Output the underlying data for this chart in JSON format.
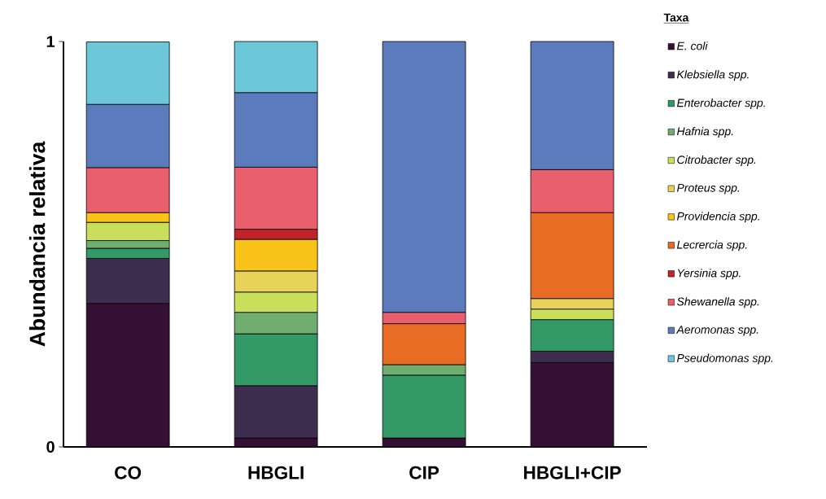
{
  "chart_data": {
    "type": "bar",
    "stacked": true,
    "ylabel": "Abundancia relativa",
    "legend_title": "Taxa",
    "legend": "right",
    "categories": [
      "CO",
      "HBGLI",
      "CIP",
      "HBGLI+CIP"
    ],
    "ylim": [
      0,
      1
    ],
    "yticks": [
      0,
      1
    ],
    "series": [
      {
        "name": "*E. coli*",
        "color": "#351035",
        "values": [
          0.354,
          0.022,
          0.022,
          0.208
        ]
      },
      {
        "name": "*Klebsiella spp.*",
        "color": "#3f2d4f",
        "values": [
          0.111,
          0.129,
          null,
          0.028
        ]
      },
      {
        "name": "*Enterobacter spp.*",
        "color": "#339966",
        "values": [
          0.025,
          0.128,
          0.155,
          0.078
        ]
      },
      {
        "name": "*Hafnia spp.*",
        "color": "#70ad70",
        "values": [
          0.019,
          0.053,
          0.026,
          null
        ]
      },
      {
        "name": "*Citrobacter spp.*",
        "color": "#c9df5b",
        "values": [
          0.045,
          0.05,
          null,
          0.026
        ]
      },
      {
        "name": "*Proteus spp.*",
        "color": "#e8d35a",
        "values": [
          null,
          0.052,
          null,
          0.026
        ]
      },
      {
        "name": "*Providencia spp.*",
        "color": "#f9c31a",
        "values": [
          0.024,
          0.078,
          null,
          null
        ]
      },
      {
        "name": "*Lecrercia spp.*",
        "color": "#e96c24",
        "values": [
          null,
          null,
          0.101,
          0.212
        ]
      },
      {
        "name": "*Yersinia spp.*",
        "color": "#c0232a",
        "values": [
          null,
          0.025,
          null,
          null
        ]
      },
      {
        "name": "*Shewanella spp.*",
        "color": "#ea5f6e",
        "values": [
          0.111,
          0.153,
          0.028,
          0.106
        ]
      },
      {
        "name": "*Aeromonas spp.*",
        "color": "#5b7bbd",
        "values": [
          0.156,
          0.184,
          0.668,
          0.316
        ]
      },
      {
        "name": "*Pseudomonas spp.*",
        "color": "#6cc8d9",
        "values": [
          0.154,
          0.126,
          null,
          null
        ]
      }
    ]
  }
}
